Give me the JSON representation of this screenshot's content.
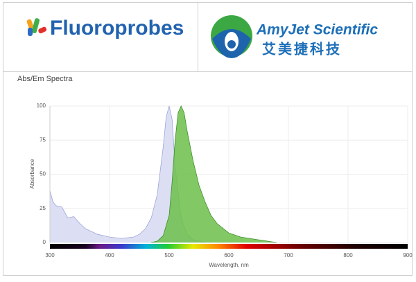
{
  "header": {
    "left_logo": "Fluoroprobes",
    "right_logo": "AmyJet Scientific",
    "right_logo_cn": "艾美捷科技"
  },
  "chart_data": {
    "type": "area",
    "title": "Abs/Em Spectra",
    "x_label": "Wavelength, nm",
    "y_label": "Absorbance",
    "xlim": [
      300,
      900
    ],
    "ylim": [
      0,
      100
    ],
    "xticks": [
      300,
      400,
      500,
      600,
      700,
      800,
      900
    ],
    "yticks": [
      0,
      25,
      50,
      75,
      100
    ],
    "grid": true,
    "series": [
      {
        "color": "#dcdff4",
        "stroke": "#9ea3d8",
        "x": [
          300,
          305,
          310,
          320,
          330,
          340,
          350,
          360,
          380,
          400,
          420,
          440,
          450,
          460,
          470,
          480,
          490,
          495,
          500,
          505,
          510,
          520,
          530,
          540,
          550,
          560
        ],
        "values": [
          38,
          30,
          27,
          26,
          18,
          19,
          14,
          10,
          6,
          4,
          3,
          4,
          6,
          10,
          18,
          35,
          70,
          92,
          100,
          90,
          55,
          18,
          6,
          2,
          1,
          0
        ]
      },
      {
        "color": "#6cc04a",
        "stroke": "#3f8f2c",
        "x": [
          470,
          480,
          490,
          500,
          505,
          510,
          515,
          520,
          525,
          530,
          540,
          550,
          560,
          570,
          580,
          600,
          620,
          650,
          680
        ],
        "values": [
          0,
          1,
          5,
          20,
          45,
          75,
          95,
          100,
          95,
          82,
          60,
          42,
          30,
          20,
          14,
          7,
          4,
          2,
          0
        ]
      }
    ]
  }
}
